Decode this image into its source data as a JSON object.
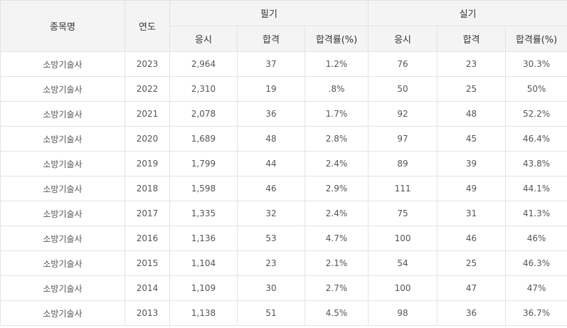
{
  "headers": {
    "item": "종목명",
    "year": "연도",
    "written": "필기",
    "practical": "실기",
    "applicants": "응시",
    "passed": "합격",
    "pass_rate": "합격률(%)"
  },
  "rows": [
    {
      "item": "소방기술사",
      "year": "2023",
      "w_app": "2,964",
      "w_pass": "37",
      "w_rate": "1.2%",
      "p_app": "76",
      "p_pass": "23",
      "p_rate": "30.3%"
    },
    {
      "item": "소방기술사",
      "year": "2022",
      "w_app": "2,310",
      "w_pass": "19",
      "w_rate": ".8%",
      "p_app": "50",
      "p_pass": "25",
      "p_rate": "50%"
    },
    {
      "item": "소방기술사",
      "year": "2021",
      "w_app": "2,078",
      "w_pass": "36",
      "w_rate": "1.7%",
      "p_app": "92",
      "p_pass": "48",
      "p_rate": "52.2%"
    },
    {
      "item": "소방기술사",
      "year": "2020",
      "w_app": "1,689",
      "w_pass": "48",
      "w_rate": "2.8%",
      "p_app": "97",
      "p_pass": "45",
      "p_rate": "46.4%"
    },
    {
      "item": "소방기술사",
      "year": "2019",
      "w_app": "1,799",
      "w_pass": "44",
      "w_rate": "2.4%",
      "p_app": "89",
      "p_pass": "39",
      "p_rate": "43.8%"
    },
    {
      "item": "소방기술사",
      "year": "2018",
      "w_app": "1,598",
      "w_pass": "46",
      "w_rate": "2.9%",
      "p_app": "111",
      "p_pass": "49",
      "p_rate": "44.1%"
    },
    {
      "item": "소방기술사",
      "year": "2017",
      "w_app": "1,335",
      "w_pass": "32",
      "w_rate": "2.4%",
      "p_app": "75",
      "p_pass": "31",
      "p_rate": "41.3%"
    },
    {
      "item": "소방기술사",
      "year": "2016",
      "w_app": "1,136",
      "w_pass": "53",
      "w_rate": "4.7%",
      "p_app": "100",
      "p_pass": "46",
      "p_rate": "46%"
    },
    {
      "item": "소방기술사",
      "year": "2015",
      "w_app": "1,104",
      "w_pass": "23",
      "w_rate": "2.1%",
      "p_app": "54",
      "p_pass": "25",
      "p_rate": "46.3%"
    },
    {
      "item": "소방기술사",
      "year": "2014",
      "w_app": "1,109",
      "w_pass": "30",
      "w_rate": "2.7%",
      "p_app": "100",
      "p_pass": "47",
      "p_rate": "47%"
    },
    {
      "item": "소방기술사",
      "year": "2013",
      "w_app": "1,138",
      "w_pass": "51",
      "w_rate": "4.5%",
      "p_app": "98",
      "p_pass": "36",
      "p_rate": "36.7%"
    }
  ]
}
